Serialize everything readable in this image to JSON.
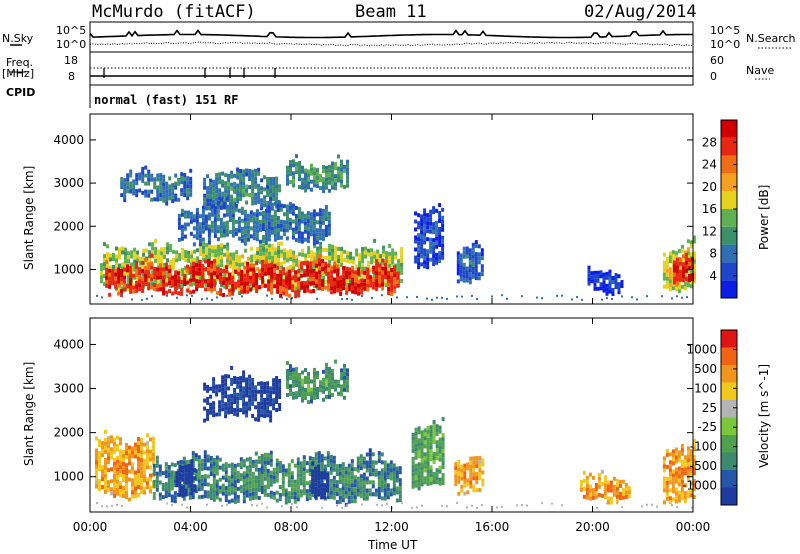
{
  "header": {
    "station": "McMurdo (fitACF)",
    "beam": "Beam 11",
    "date": "02/Aug/2014"
  },
  "top_panels": {
    "nsky_label": "N.Sky",
    "nsky_ticks": [
      "10^5",
      "10^0"
    ],
    "nsearch_label": "N.Search",
    "nsearch_ticks": [
      "10^5",
      "10^0"
    ],
    "freq_label": "Freq.",
    "freq_unit": "[MHz]",
    "freq_ticks": [
      "18",
      "8"
    ],
    "nave_label": "Nave",
    "nave_ticks": [
      "60",
      "0"
    ],
    "cpid_label": "CPID",
    "cpid_text": "normal (fast) 151 RF"
  },
  "colors": {
    "power_scale": [
      "#0a1ee6",
      "#1e46c8",
      "#2f6fb4",
      "#3e9068",
      "#5fb050",
      "#e6d21e",
      "#f5a01e",
      "#f06e14",
      "#e82814",
      "#d00000"
    ],
    "velocity_scale": [
      "#1e3ca0",
      "#2457a8",
      "#3e8a6e",
      "#4fa050",
      "#7cc83c",
      "#b4b4b4",
      "#f0c81e",
      "#f0961e",
      "#f06414",
      "#e01414"
    ]
  },
  "chart_data": [
    {
      "type": "heatmap",
      "title": "Power",
      "xlabel": "Time UT",
      "ylabel": "Slant Range [km]",
      "x_ticks": [
        "00:00",
        "04:00",
        "08:00",
        "12:00",
        "16:00",
        "20:00",
        "00:00"
      ],
      "y_ticks": [
        1000,
        2000,
        3000,
        4000
      ],
      "ylim": [
        200,
        4600
      ],
      "colorbar_label": "Power [dB]",
      "colorbar_ticks": [
        4,
        8,
        12,
        16,
        20,
        24,
        28
      ],
      "blobs": [
        {
          "t0": 0.4,
          "t1": 12.4,
          "r0": 600,
          "r1": 1550,
          "level": 0.55
        },
        {
          "t0": 0.6,
          "t1": 12.3,
          "r0": 500,
          "r1": 1150,
          "level": 0.93
        },
        {
          "t0": 1.2,
          "t1": 4.0,
          "r0": 2650,
          "r1": 3250,
          "level": 0.3
        },
        {
          "t0": 4.5,
          "t1": 7.5,
          "r0": 2500,
          "r1": 3300,
          "level": 0.35
        },
        {
          "t0": 7.8,
          "t1": 10.3,
          "r0": 2900,
          "r1": 3500,
          "level": 0.4
        },
        {
          "t0": 3.5,
          "t1": 9.5,
          "r0": 1700,
          "r1": 2500,
          "level": 0.3
        },
        {
          "t0": 12.9,
          "t1": 14.0,
          "r0": 1100,
          "r1": 2400,
          "level": 0.2
        },
        {
          "t0": 14.6,
          "t1": 15.6,
          "r0": 800,
          "r1": 1600,
          "level": 0.25
        },
        {
          "t0": 19.8,
          "t1": 21.2,
          "r0": 500,
          "r1": 1000,
          "level": 0.15
        },
        {
          "t0": 22.8,
          "t1": 24.0,
          "r0": 600,
          "r1": 1600,
          "level": 0.6
        },
        {
          "t0": 23.2,
          "t1": 24.0,
          "r0": 700,
          "r1": 1300,
          "level": 0.92
        }
      ]
    },
    {
      "type": "heatmap",
      "title": "Velocity",
      "xlabel": "Time UT",
      "ylabel": "Slant Range [km]",
      "x_ticks": [
        "00:00",
        "04:00",
        "08:00",
        "12:00",
        "16:00",
        "20:00",
        "00:00"
      ],
      "y_ticks": [
        1000,
        2000,
        3000,
        4000
      ],
      "ylim": [
        200,
        4600
      ],
      "colorbar_label": "Velocity [m s^-1]",
      "colorbar_ticks": [
        1000,
        500,
        100,
        25,
        -25,
        -100,
        -500,
        -1000
      ],
      "blobs": [
        {
          "t0": 0.2,
          "t1": 2.5,
          "r0": 600,
          "r1": 1900,
          "level": 0.78
        },
        {
          "t0": 2.5,
          "t1": 12.4,
          "r0": 500,
          "r1": 1450,
          "level": 0.3
        },
        {
          "t0": 3.4,
          "t1": 4.2,
          "r0": 600,
          "r1": 1300,
          "level": 0.05
        },
        {
          "t0": 8.8,
          "t1": 9.4,
          "r0": 600,
          "r1": 1300,
          "level": 0.05
        },
        {
          "t0": 4.5,
          "t1": 7.5,
          "r0": 2400,
          "r1": 3300,
          "level": 0.1
        },
        {
          "t0": 7.8,
          "t1": 10.3,
          "r0": 2800,
          "r1": 3500,
          "level": 0.35
        },
        {
          "t0": 12.8,
          "t1": 14.0,
          "r0": 800,
          "r1": 2200,
          "level": 0.4
        },
        {
          "t0": 14.5,
          "t1": 15.6,
          "r0": 700,
          "r1": 1500,
          "level": 0.78
        },
        {
          "t0": 19.5,
          "t1": 21.5,
          "r0": 500,
          "r1": 1000,
          "level": 0.8
        },
        {
          "t0": 22.8,
          "t1": 24.0,
          "r0": 500,
          "r1": 1700,
          "level": 0.8
        }
      ]
    }
  ]
}
